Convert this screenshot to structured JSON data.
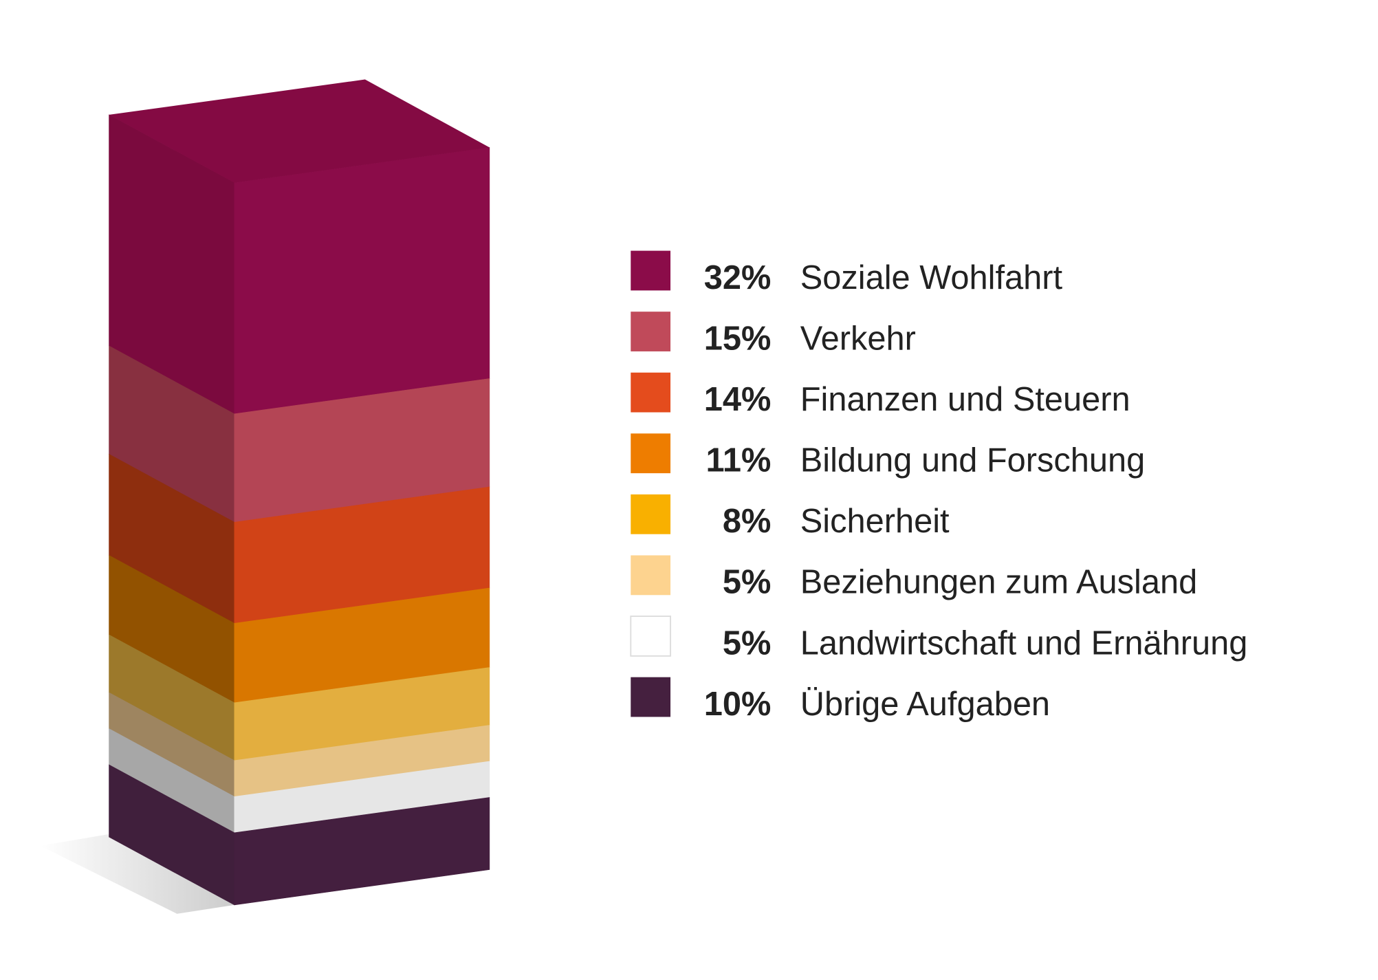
{
  "chart_data": {
    "type": "bar",
    "subtype": "3d-stacked-single-column",
    "unit": "%",
    "legend_position": "right",
    "categories": [
      "Soziale Wohlfahrt",
      "Verkehr",
      "Finanzen und Steuern",
      "Bildung und Forschung",
      "Sicherheit",
      "Beziehungen zum Ausland",
      "Landwirtschaft und Ernährung",
      "Übrige Aufgaben"
    ],
    "values": [
      32,
      15,
      14,
      11,
      8,
      5,
      5,
      10
    ],
    "value_labels": [
      "32%",
      "15%",
      "14%",
      "11%",
      "8%",
      "5%",
      "5%",
      "10%"
    ],
    "colors": [
      "#8b0c49",
      "#b44555",
      "#d14317",
      "#d97700",
      "#e3ae3f",
      "#e6c285",
      "#e6e6e6",
      "#441f3f"
    ],
    "side_colors": [
      "#7b0a3e",
      "#883040",
      "#8e2e0e",
      "#925200",
      "#9c792b",
      "#9e8560",
      "#a7a7a7",
      "#401f3c"
    ],
    "legend_colors": [
      "#8b0c49",
      "#c04a5a",
      "#e44c1d",
      "#ee7d00",
      "#f9b000",
      "#fdd38f",
      "#ffffff",
      "#45203f"
    ],
    "top_color": "#840a43"
  }
}
